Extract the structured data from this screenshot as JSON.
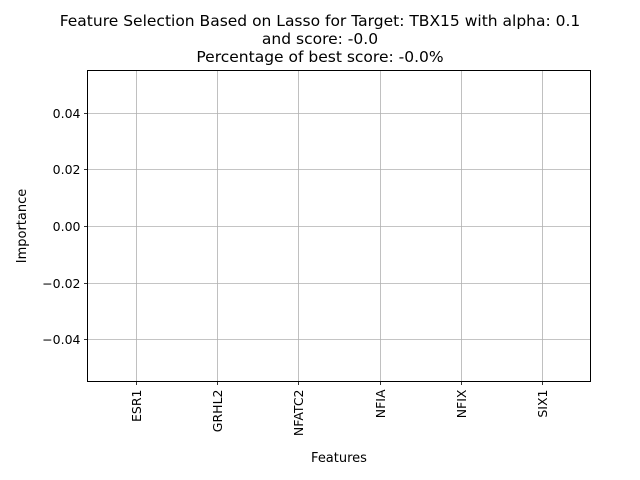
{
  "chart_data": {
    "type": "bar",
    "title_lines": [
      "Feature Selection Based on Lasso for Target: TBX15 with alpha: 0.1",
      "and score: -0.0",
      "Percentage of best score: -0.0%"
    ],
    "xlabel": "Features",
    "ylabel": "Importance",
    "categories": [
      "ESR1",
      "GRHL2",
      "NFATC2",
      "NFIA",
      "NFIX",
      "SIX1"
    ],
    "values": [
      0,
      0,
      0,
      0,
      0,
      0
    ],
    "ylim": [
      -0.055,
      0.055
    ],
    "yticks": [
      -0.04,
      -0.02,
      0.0,
      0.02,
      0.04
    ],
    "ytick_labels": [
      "−0.04",
      "−0.02",
      "0.00",
      "0.02",
      "0.04"
    ],
    "grid": true
  }
}
